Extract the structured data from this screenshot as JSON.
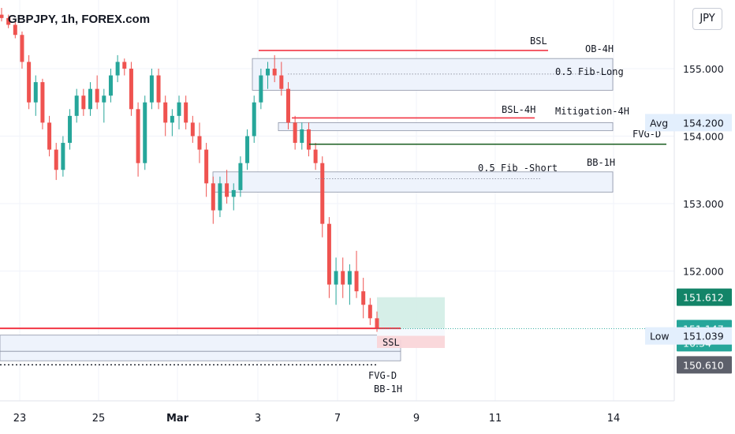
{
  "header": {
    "title": "GBPJPY, 1h, FOREX.com",
    "currency": "JPY"
  },
  "colors": {
    "up": "#26a69a",
    "down": "#ef5350",
    "red_line": "#f23645",
    "green_line": "#1b5e20",
    "zone_fill": "#eef3fc",
    "zone_border": "#8c93a6",
    "last_price_bg": "#f23645",
    "box_green": "#d2ede6",
    "box_red": "#fad4d7",
    "green_tag": "#138468",
    "gray_tag": "#5d606b",
    "avg_bg": "#e3effd"
  },
  "chart_data": {
    "type": "candlestick",
    "ylim": [
      150.45,
      155.85
    ],
    "x_ticks": [
      "23",
      "25",
      "Mar",
      "3",
      "7",
      "9",
      "11",
      "14"
    ],
    "y_ticks": [
      "155.000",
      "154.000",
      "153.000",
      "152.000"
    ],
    "price_tags": [
      {
        "name": "Avg",
        "value": 154.2,
        "label": "154.200",
        "style": "avg"
      },
      {
        "name": "",
        "value": 151.612,
        "label": "151.612",
        "style": "green"
      },
      {
        "name": "",
        "value": 151.147,
        "label": "151.147",
        "sublabel": "16:34",
        "style": "red"
      },
      {
        "name": "Low",
        "value": 151.039,
        "label": "151.039",
        "style": "low"
      },
      {
        "name": "",
        "value": 150.61,
        "label": "150.610",
        "style": "gray"
      }
    ],
    "horizontal_lines": [
      {
        "label": "BSL",
        "value": 155.27,
        "color": "red"
      },
      {
        "label": "BSL-4H",
        "value": 154.27,
        "color": "red"
      },
      {
        "label": "FVG-D",
        "value": 153.88,
        "color": "green"
      },
      {
        "label": "SSL",
        "value": 151.15,
        "color": "red"
      }
    ],
    "zones": [
      {
        "label": "OB-4H",
        "top": 155.15,
        "bottom": 154.68
      },
      {
        "label": "Mitigation-4H",
        "top": 154.2,
        "bottom": 154.08
      },
      {
        "label": "BB-1H",
        "top": 153.47,
        "bottom": 153.17
      },
      {
        "label": "FVG-D",
        "top": 151.05,
        "bottom": 150.81
      },
      {
        "label": "BB-1H",
        "top": 150.81,
        "bottom": 150.67
      }
    ],
    "fib_levels": [
      {
        "label": "0.5 Fib-Long",
        "value": 154.92
      },
      {
        "label": "0.5 Fib -Short",
        "value": 153.37
      }
    ],
    "dotted_line_value": 150.61,
    "position_box": {
      "entry": 151.147,
      "target": 151.612,
      "stop": 150.98
    },
    "candles": [
      [
        155.8,
        155.9,
        155.7,
        155.75
      ],
      [
        155.75,
        155.8,
        155.6,
        155.65
      ],
      [
        155.65,
        155.7,
        155.45,
        155.5
      ],
      [
        155.5,
        155.55,
        155.0,
        155.1
      ],
      [
        155.1,
        155.2,
        154.4,
        154.5
      ],
      [
        154.5,
        154.9,
        154.3,
        154.8
      ],
      [
        154.8,
        154.85,
        154.1,
        154.2
      ],
      [
        154.2,
        154.3,
        153.7,
        153.8
      ],
      [
        153.8,
        153.9,
        153.35,
        153.5
      ],
      [
        153.5,
        154.0,
        153.4,
        153.9
      ],
      [
        153.9,
        154.4,
        153.8,
        154.3
      ],
      [
        154.3,
        154.7,
        154.2,
        154.6
      ],
      [
        154.6,
        154.7,
        154.3,
        154.4
      ],
      [
        154.4,
        154.8,
        154.3,
        154.7
      ],
      [
        154.7,
        154.9,
        154.4,
        154.5
      ],
      [
        154.5,
        154.7,
        154.2,
        154.6
      ],
      [
        154.6,
        155.0,
        154.5,
        154.9
      ],
      [
        154.9,
        155.2,
        154.8,
        155.1
      ],
      [
        155.1,
        155.15,
        154.9,
        155.0
      ],
      [
        155.0,
        155.1,
        154.3,
        154.4
      ],
      [
        154.4,
        154.5,
        153.4,
        153.6
      ],
      [
        153.6,
        154.6,
        153.5,
        154.5
      ],
      [
        154.5,
        155.0,
        154.4,
        154.9
      ],
      [
        154.9,
        155.0,
        154.4,
        154.5
      ],
      [
        154.5,
        154.6,
        154.0,
        154.2
      ],
      [
        154.2,
        154.4,
        154.0,
        154.3
      ],
      [
        154.3,
        154.6,
        154.1,
        154.5
      ],
      [
        154.5,
        154.6,
        154.1,
        154.2
      ],
      [
        154.2,
        154.3,
        153.9,
        154.0
      ],
      [
        154.0,
        154.2,
        153.6,
        153.8
      ],
      [
        153.8,
        153.9,
        153.1,
        153.3
      ],
      [
        153.3,
        153.4,
        152.7,
        152.9
      ],
      [
        152.9,
        153.4,
        152.8,
        153.3
      ],
      [
        153.3,
        153.5,
        153.0,
        153.1
      ],
      [
        153.1,
        153.3,
        152.9,
        153.2
      ],
      [
        153.2,
        153.7,
        153.1,
        153.6
      ],
      [
        153.6,
        154.1,
        153.5,
        154.0
      ],
      [
        154.0,
        154.6,
        153.9,
        154.5
      ],
      [
        154.5,
        155.0,
        154.4,
        154.9
      ],
      [
        154.9,
        155.1,
        154.7,
        155.0
      ],
      [
        155.0,
        155.2,
        154.8,
        154.9
      ],
      [
        154.9,
        155.1,
        154.6,
        154.7
      ],
      [
        154.7,
        154.8,
        154.1,
        154.2
      ],
      [
        154.2,
        154.3,
        153.8,
        153.9
      ],
      [
        153.9,
        154.2,
        153.8,
        154.1
      ],
      [
        154.1,
        154.2,
        153.7,
        153.8
      ],
      [
        153.8,
        153.9,
        153.5,
        153.6
      ],
      [
        153.6,
        153.7,
        152.5,
        152.7
      ],
      [
        152.7,
        152.8,
        151.6,
        151.8
      ],
      [
        151.8,
        152.2,
        151.5,
        152.0
      ],
      [
        152.0,
        152.2,
        151.6,
        151.8
      ],
      [
        151.8,
        152.1,
        151.5,
        152.0
      ],
      [
        152.0,
        152.3,
        151.6,
        151.7
      ],
      [
        151.7,
        151.9,
        151.3,
        151.5
      ],
      [
        151.5,
        151.6,
        151.2,
        151.3
      ],
      [
        151.3,
        151.4,
        151.1,
        151.15
      ]
    ]
  }
}
